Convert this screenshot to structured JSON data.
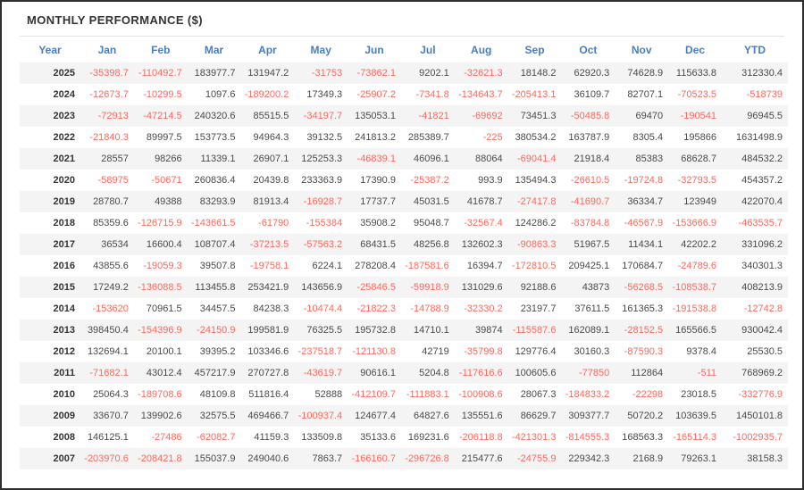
{
  "title": "MONTHLY PERFORMANCE ($)",
  "colors": {
    "header_text": "#4a7ebf",
    "negative": "#fb6a60",
    "positive": "#4a4a4a",
    "row_alt": "#f4f4f4",
    "frame_border": "#2e2e2e"
  },
  "table": {
    "columns": [
      "Year",
      "Jan",
      "Feb",
      "Mar",
      "Apr",
      "May",
      "Jun",
      "Jul",
      "Aug",
      "Sep",
      "Oct",
      "Nov",
      "Dec",
      "YTD"
    ],
    "rows": [
      {
        "year": "2025",
        "values": [
          "-35398.7",
          "-110492.7",
          "183977.7",
          "131947.2",
          "-31753",
          "-73862.1",
          "9202.1",
          "-32621.3",
          "18148.2",
          "62920.3",
          "74628.9",
          "115633.8",
          "312330.4"
        ]
      },
      {
        "year": "2024",
        "values": [
          "-12673.7",
          "-10299.5",
          "1097.6",
          "-189200.2",
          "17349.3",
          "-25907.2",
          "-7341.8",
          "-134643.7",
          "-205413.1",
          "36109.7",
          "82707.1",
          "-70523.5",
          "-518739"
        ]
      },
      {
        "year": "2023",
        "values": [
          "-72913",
          "-47214.5",
          "240320.6",
          "85515.5",
          "-34197.7",
          "135053.1",
          "-41821",
          "-69692",
          "73451.3",
          "-50485.8",
          "69470",
          "-190541",
          "96945.5"
        ]
      },
      {
        "year": "2022",
        "values": [
          "-21840.3",
          "89997.5",
          "153773.5",
          "94964.3",
          "39132.5",
          "241813.2",
          "285389.7",
          "-225",
          "380534.2",
          "163787.9",
          "8305.4",
          "195866",
          "1631498.9"
        ]
      },
      {
        "year": "2021",
        "values": [
          "28557",
          "98266",
          "11339.1",
          "26907.1",
          "125253.3",
          "-46839.1",
          "46096.1",
          "88064",
          "-69041.4",
          "21918.4",
          "85383",
          "68628.7",
          "484532.2"
        ]
      },
      {
        "year": "2020",
        "values": [
          "-58975",
          "-50671",
          "260836.4",
          "20439.8",
          "233363.9",
          "17390.9",
          "-25387.2",
          "993.9",
          "135494.3",
          "-26610.5",
          "-19724.8",
          "-32793.5",
          "454357.2"
        ]
      },
      {
        "year": "2019",
        "values": [
          "28780.7",
          "49388",
          "83293.9",
          "81913.4",
          "-16928.7",
          "17737.7",
          "45031.5",
          "41678.7",
          "-27417.8",
          "-41690.7",
          "36334.7",
          "123949",
          "422070.4"
        ]
      },
      {
        "year": "2018",
        "values": [
          "85359.6",
          "-126715.9",
          "-143661.5",
          "-61790",
          "-155384",
          "35908.2",
          "95048.7",
          "-32567.4",
          "124286.2",
          "-83784.8",
          "-46567.9",
          "-153666.9",
          "-463535.7"
        ]
      },
      {
        "year": "2017",
        "values": [
          "36534",
          "16600.4",
          "108707.4",
          "-37213.5",
          "-57563.2",
          "68431.5",
          "48256.8",
          "132602.3",
          "-90863.3",
          "51967.5",
          "11434.1",
          "42202.2",
          "331096.2"
        ]
      },
      {
        "year": "2016",
        "values": [
          "43855.6",
          "-19059.3",
          "39507.8",
          "-19758.1",
          "6224.1",
          "278208.4",
          "-187581.6",
          "16394.7",
          "-172810.5",
          "209425.1",
          "170684.7",
          "-24789.6",
          "340301.3"
        ]
      },
      {
        "year": "2015",
        "values": [
          "17249.2",
          "-136088.5",
          "113455.8",
          "253421.9",
          "143656.9",
          "-25846.5",
          "-59918.9",
          "131029.6",
          "92188.6",
          "43873",
          "-56268.5",
          "-108538.7",
          "408213.9"
        ]
      },
      {
        "year": "2014",
        "values": [
          "-153620",
          "70961.5",
          "34457.5",
          "84238.3",
          "-10474.4",
          "-21822.3",
          "-14788.9",
          "-32330.2",
          "23197.7",
          "37611.5",
          "161365.3",
          "-191538.8",
          "-12742.8"
        ]
      },
      {
        "year": "2013",
        "values": [
          "398450.4",
          "-154396.9",
          "-24150.9",
          "199581.9",
          "76325.5",
          "195732.8",
          "14710.1",
          "39874",
          "-115587.6",
          "162089.1",
          "-28152.5",
          "165566.5",
          "930042.4"
        ]
      },
      {
        "year": "2012",
        "values": [
          "132694.1",
          "20100.1",
          "39395.2",
          "103346.6",
          "-237518.7",
          "-121130.8",
          "42719",
          "-35799.8",
          "129776.4",
          "30160.3",
          "-87590.3",
          "9378.4",
          "25530.5"
        ]
      },
      {
        "year": "2011",
        "values": [
          "-71682.1",
          "43012.4",
          "457217.9",
          "270727.8",
          "-43619.7",
          "90616.1",
          "5204.8",
          "-117616.6",
          "100605.6",
          "-77850",
          "112864",
          "-511",
          "768969.2"
        ]
      },
      {
        "year": "2010",
        "values": [
          "25064.3",
          "-189708.6",
          "48109.8",
          "511816.4",
          "52888",
          "-412109.7",
          "-111883.1",
          "-100908.6",
          "28067.3",
          "-184833.2",
          "-22298",
          "23018.5",
          "-332776.9"
        ]
      },
      {
        "year": "2009",
        "values": [
          "33670.7",
          "139902.6",
          "32575.5",
          "469466.7",
          "-100937.4",
          "124677.4",
          "64827.6",
          "135551.6",
          "86629.7",
          "309377.7",
          "50720.2",
          "103639.5",
          "1450101.8"
        ]
      },
      {
        "year": "2008",
        "values": [
          "146125.1",
          "-27486",
          "-62082.7",
          "41159.3",
          "133509.8",
          "35133.6",
          "169231.6",
          "-206118.8",
          "-421301.3",
          "-814555.3",
          "168563.3",
          "-165114.3",
          "-1002935.7"
        ]
      },
      {
        "year": "2007",
        "values": [
          "-203970.6",
          "-208421.8",
          "155037.9",
          "249040.6",
          "7863.7",
          "-166160.7",
          "-296726.8",
          "215477.6",
          "-24755.9",
          "229342.3",
          "2168.9",
          "79263.1",
          "38158.3"
        ]
      }
    ]
  }
}
